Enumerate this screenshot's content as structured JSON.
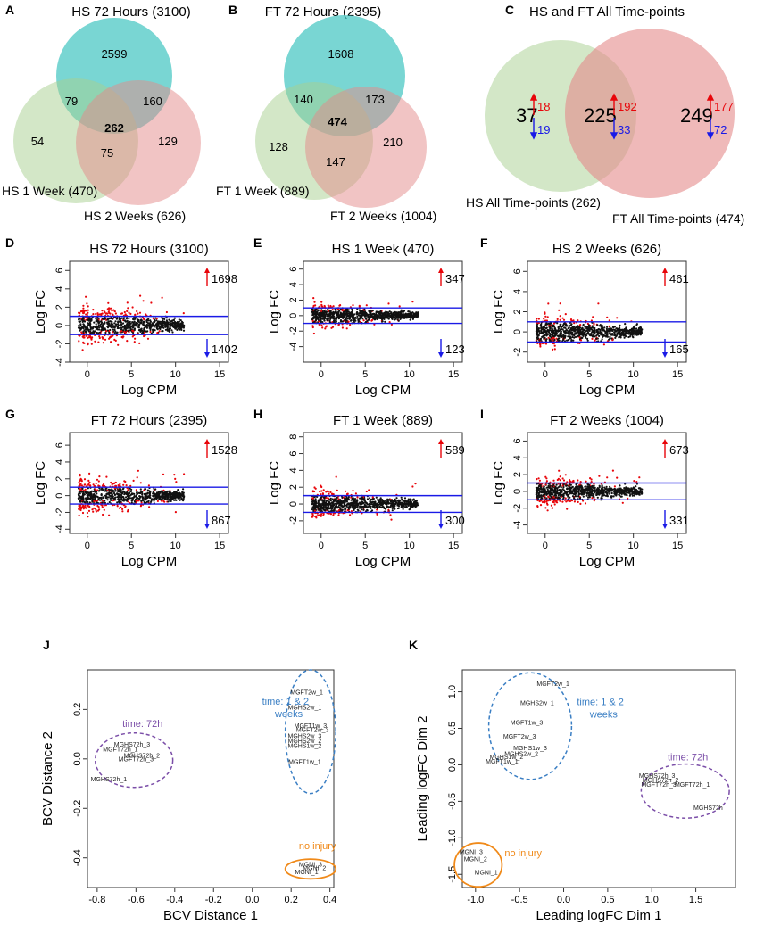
{
  "figure": "Gene expression Venn diagrams, MA plots and MDS plots",
  "venns": [
    {
      "letter": "A",
      "title": "HS 72 Hours (3100)",
      "label_b": "HS 1 Week (470)",
      "label_c": "HS 2 Weeks (626)",
      "only_a": "2599",
      "ab": "79",
      "ac": "160",
      "abc": "262",
      "only_b": "54",
      "only_c": "129",
      "bc": "75"
    },
    {
      "letter": "B",
      "title": "FT 72 Hours (2395)",
      "label_b": "FT 1 Week (889)",
      "label_c": "FT 2 Weeks (1004)",
      "only_a": "1608",
      "ab": "140",
      "ac": "173",
      "abc": "474",
      "only_b": "128",
      "only_c": "210",
      "bc": "147"
    }
  ],
  "venn2": {
    "letter": "C",
    "title": "HS and FT All Time-points",
    "label_left": "HS All Time-points (262)",
    "label_right": "FT All Time-points (474)",
    "left": {
      "total": "37",
      "up": "18",
      "down": "19"
    },
    "center": {
      "total": "225",
      "up": "192",
      "down": "33"
    },
    "right": {
      "total": "249",
      "up": "177",
      "down": "72"
    }
  },
  "colors": {
    "red": "#e8050a",
    "blue": "#1a1ae6",
    "teal": "#40c4c0",
    "green": "#a7cf8f",
    "pink": "#e48a8a",
    "purple": "#7b4ea8",
    "steel": "#3b7fc4",
    "orange": "#f08a1a"
  },
  "chart_data": [
    {
      "type": "scatter",
      "letter": "D",
      "title": "HS 72 Hours (3100)",
      "xlabel": "Log CPM",
      "ylabel": "Log FC",
      "xlim": [
        -2,
        16
      ],
      "ylim": [
        -4,
        7
      ],
      "xticks": [
        "0",
        "5",
        "10",
        "15"
      ],
      "yticks": [
        "-4",
        "-2",
        "0",
        "2",
        "4",
        "6"
      ],
      "threshold": [
        1,
        -1
      ],
      "up": "1698",
      "down": "1402",
      "spread": 2.2
    },
    {
      "type": "scatter",
      "letter": "E",
      "title": "HS 1 Week (470)",
      "xlabel": "Log CPM",
      "ylabel": "Log FC",
      "xlim": [
        -2,
        16
      ],
      "ylim": [
        -6,
        7
      ],
      "xticks": [
        "0",
        "5",
        "10",
        "15"
      ],
      "yticks": [
        "-4",
        "-2",
        "0",
        "2",
        "4",
        "6"
      ],
      "threshold": [
        1,
        -1
      ],
      "up": "347",
      "down": "123",
      "spread": 1.3
    },
    {
      "type": "scatter",
      "letter": "F",
      "title": "HS 2 Weeks (626)",
      "xlabel": "Log CPM",
      "ylabel": "Log FC",
      "xlim": [
        -2,
        16
      ],
      "ylim": [
        -3,
        7
      ],
      "xticks": [
        "0",
        "5",
        "10",
        "15"
      ],
      "yticks": [
        "-2",
        "0",
        "2",
        "4",
        "6"
      ],
      "threshold": [
        1,
        -1
      ],
      "up": "461",
      "down": "165",
      "spread": 1.3
    },
    {
      "type": "scatter",
      "letter": "G",
      "title": "FT 72 Hours (2395)",
      "xlabel": "Log CPM",
      "ylabel": "Log FC",
      "xlim": [
        -2,
        16
      ],
      "ylim": [
        -4.5,
        7.5
      ],
      "xticks": [
        "0",
        "5",
        "10",
        "15"
      ],
      "yticks": [
        "-4",
        "-2",
        "0",
        "2",
        "4",
        "6"
      ],
      "threshold": [
        1,
        -1
      ],
      "up": "1528",
      "down": "867",
      "spread": 2.0
    },
    {
      "type": "scatter",
      "letter": "H",
      "title": "FT 1 Week (889)",
      "xlabel": "Log CPM",
      "ylabel": "Log FC",
      "xlim": [
        -2,
        16
      ],
      "ylim": [
        -3.5,
        8.5
      ],
      "xticks": [
        "0",
        "5",
        "10",
        "15"
      ],
      "yticks": [
        "-2",
        "0",
        "2",
        "4",
        "6",
        "8"
      ],
      "threshold": [
        1,
        -1
      ],
      "up": "589",
      "down": "300",
      "spread": 1.5
    },
    {
      "type": "scatter",
      "letter": "I",
      "title": "FT 2 Weeks (1004)",
      "xlabel": "Log CPM",
      "ylabel": "Log FC",
      "xlim": [
        -2,
        16
      ],
      "ylim": [
        -5,
        7
      ],
      "xticks": [
        "0",
        "5",
        "10",
        "15"
      ],
      "yticks": [
        "-4",
        "-2",
        "0",
        "2",
        "4",
        "6"
      ],
      "threshold": [
        1,
        -1
      ],
      "up": "673",
      "down": "331",
      "spread": 1.5
    },
    {
      "type": "scatter",
      "letter": "J",
      "xlabel": "BCV Distance 1",
      "ylabel": "BCV Distance 2",
      "xlim": [
        -0.85,
        0.42
      ],
      "ylim": [
        -0.52,
        0.36
      ],
      "xticks": [
        "-0.8",
        "-0.6",
        "-0.4",
        "-0.2",
        "0.0",
        "0.2",
        "0.4"
      ],
      "yticks": [
        "-0.4",
        "-0.2",
        "0.0",
        "0.2"
      ],
      "points": [
        {
          "label": "MGFT2w_1",
          "x": 0.28,
          "y": 0.26
        },
        {
          "label": "MGHS2w_1",
          "x": 0.27,
          "y": 0.2
        },
        {
          "label": "MGFT1w_3",
          "x": 0.3,
          "y": 0.125
        },
        {
          "label": "MGFT2w_3",
          "x": 0.31,
          "y": 0.11
        },
        {
          "label": "MGHS2w_3",
          "x": 0.27,
          "y": 0.085
        },
        {
          "label": "MGHS2w_2",
          "x": 0.27,
          "y": 0.065
        },
        {
          "label": "MGHS1w_2",
          "x": 0.27,
          "y": 0.045
        },
        {
          "label": "MGFT1w_1",
          "x": 0.27,
          "y": -0.02
        },
        {
          "label": "MGHS72h_3",
          "x": -0.62,
          "y": 0.05
        },
        {
          "label": "MGFT72h_1",
          "x": -0.68,
          "y": 0.03
        },
        {
          "label": "MGHS72h_2",
          "x": -0.57,
          "y": 0.005
        },
        {
          "label": "MGFT72h_3",
          "x": -0.6,
          "y": -0.01
        },
        {
          "label": "MGHS72h_1",
          "x": -0.74,
          "y": -0.09
        },
        {
          "label": "MGNI_3",
          "x": 0.3,
          "y": -0.435
        },
        {
          "label": "MGNI_2",
          "x": 0.32,
          "y": -0.45
        },
        {
          "label": "MGNI_1",
          "x": 0.28,
          "y": -0.465
        }
      ],
      "groups": [
        {
          "label": "time: 1 & 2\nweeks",
          "color": "steel",
          "cx": 0.3,
          "cy": 0.11,
          "rx": 0.13,
          "ry": 0.25,
          "tx": 0.05,
          "ty": 0.22
        },
        {
          "label": "time: 72h",
          "color": "purple",
          "cx": -0.61,
          "cy": -0.005,
          "rx": 0.2,
          "ry": 0.11,
          "tx": -0.67,
          "ty": 0.13
        },
        {
          "label": "no injury",
          "color": "orange",
          "cx": 0.3,
          "cy": -0.445,
          "rx": 0.13,
          "ry": 0.04,
          "tx": 0.24,
          "ty": -0.365
        }
      ]
    },
    {
      "type": "scatter",
      "letter": "K",
      "xlabel": "Leading logFC Dim 1",
      "ylabel": "Leading logFC Dim 2",
      "xlim": [
        -1.15,
        1.95
      ],
      "ylim": [
        -1.68,
        1.3
      ],
      "xticks": [
        "-1.0",
        "-0.5",
        "0.0",
        "0.5",
        "1.0",
        "1.5"
      ],
      "yticks": [
        "-1.5",
        "-1.0",
        "-0.5",
        "0.0",
        "0.5",
        "1.0"
      ],
      "points": [
        {
          "label": "MGFT2w_1",
          "x": -0.12,
          "y": 1.08
        },
        {
          "label": "MGHS2w_1",
          "x": -0.3,
          "y": 0.82
        },
        {
          "label": "MGFT1w_3",
          "x": -0.42,
          "y": 0.55
        },
        {
          "label": "MGFT2w_3",
          "x": -0.5,
          "y": 0.36
        },
        {
          "label": "MGHS1w_3",
          "x": -0.38,
          "y": 0.2
        },
        {
          "label": "MGHS2w_2",
          "x": -0.48,
          "y": 0.12
        },
        {
          "label": "MGHS1w_2",
          "x": -0.65,
          "y": 0.08
        },
        {
          "label": "MGFT1w_1",
          "x": -0.7,
          "y": 0.02
        },
        {
          "label": "MGHS72h_3",
          "x": 1.06,
          "y": -0.18
        },
        {
          "label": "MGHS72h_2",
          "x": 1.1,
          "y": -0.24
        },
        {
          "label": "MGFT72h_3",
          "x": 1.08,
          "y": -0.3
        },
        {
          "label": "MGFT72h_1",
          "x": 1.46,
          "y": -0.3
        },
        {
          "label": "MGHS72h",
          "x": 1.64,
          "y": -0.62
        },
        {
          "label": "MGNI_3",
          "x": -1.05,
          "y": -1.22
        },
        {
          "label": "MGNI_2",
          "x": -1.0,
          "y": -1.32
        },
        {
          "label": "MGNI_1",
          "x": -0.88,
          "y": -1.5
        }
      ],
      "groups": [
        {
          "label": "time: 1 & 2\nweeks",
          "color": "steel",
          "cx": -0.38,
          "cy": 0.53,
          "rx": 0.47,
          "ry": 0.73,
          "tx": 0.15,
          "ty": 0.82
        },
        {
          "label": "time: 72h",
          "color": "purple",
          "cx": 1.38,
          "cy": -0.36,
          "rx": 0.5,
          "ry": 0.37,
          "tx": 1.18,
          "ty": 0.06
        },
        {
          "label": "no injury",
          "color": "orange",
          "cx": -0.97,
          "cy": -1.37,
          "rx": 0.27,
          "ry": 0.3,
          "tx": -0.67,
          "ty": -1.25
        }
      ]
    }
  ]
}
